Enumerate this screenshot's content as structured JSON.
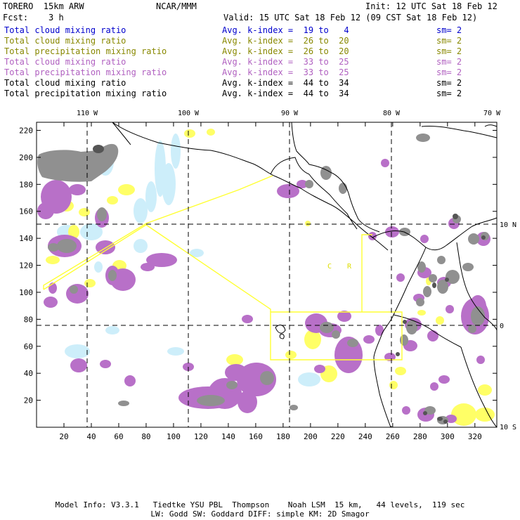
{
  "header": {
    "model": "TORERO  15km ARW",
    "org": "NCAR/MMM",
    "init": "Init: 12 UTC Sat 18 Feb 12",
    "fcst": "Fcst:    3 h",
    "valid": "Valid: 15 UTC Sat 18 Feb 12 (09 CST Sat 18 Feb 12)"
  },
  "legend": [
    {
      "name": "Total cloud mixing ratio",
      "avg": "Avg. k-index =  19 to   4",
      "sm": "sm= 2",
      "color": "#0000cc"
    },
    {
      "name": "Total cloud mixing ratio",
      "avg": "Avg. k-index =  26 to  20",
      "sm": "sm= 2",
      "color": "#888800"
    },
    {
      "name": "Total precipitation mixing ratio",
      "avg": "Avg. k-index =  26 to  20",
      "sm": "sm= 2",
      "color": "#888800"
    },
    {
      "name": "Total cloud mixing ratio",
      "avg": "Avg. k-index =  33 to  25",
      "sm": "sm= 2",
      "color": "#b060c0"
    },
    {
      "name": "Total precipitation mixing ratio",
      "avg": "Avg. k-index =  33 to  25",
      "sm": "sm= 2",
      "color": "#b060c0"
    },
    {
      "name": "Total cloud mixing ratio",
      "avg": "Avg. k-index =  44 to  34",
      "sm": "sm= 2",
      "color": "#000000"
    },
    {
      "name": "Total precipitation mixing ratio",
      "avg": "Avg. k-index =  44 to  34",
      "sm": "sm= 2",
      "color": "#000000"
    }
  ],
  "map": {
    "lon_labels": [
      "110 W",
      "100 W",
      "90 W",
      "80 W",
      "70 W"
    ],
    "lat_labels": [
      "10 N",
      "0",
      "10 S"
    ],
    "x_ticks": [
      "20",
      "40",
      "60",
      "80",
      "100",
      "120",
      "140",
      "160",
      "180",
      "200",
      "220",
      "240",
      "260",
      "280",
      "300",
      "320"
    ],
    "y_ticks": [
      "20",
      "40",
      "60",
      "80",
      "100",
      "120",
      "140",
      "160",
      "180",
      "200",
      "220"
    ],
    "station_labels": [
      "C",
      "R"
    ],
    "colors": {
      "light_blue": "#cdeefa",
      "yellow": "#ffff66",
      "violet": "#b870c8",
      "gray": "#909090",
      "dark_gray": "#555555",
      "domain_line": "#ffff33",
      "coast": "#000000"
    }
  },
  "footer": {
    "line1": "Model Info: V3.3.1   Tiedtke YSU PBL  Thompson    Noah LSM  15 km,   44 levels,  119 sec",
    "line2": "LW: Godd SW: Goddard DIFF: simple KM: 2D Smagor"
  }
}
